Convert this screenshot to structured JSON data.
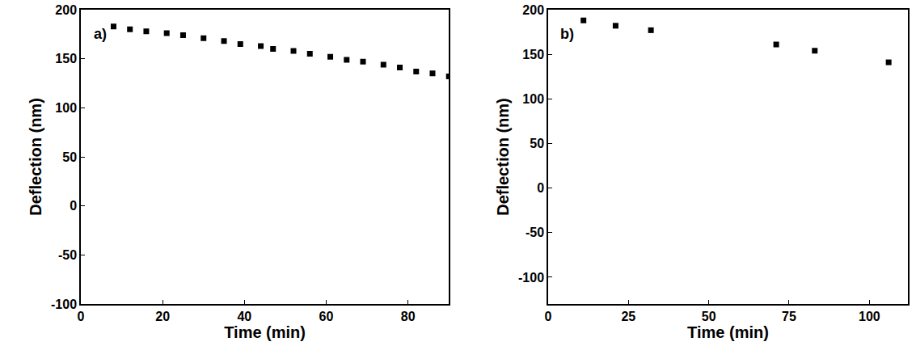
{
  "chart_data": [
    {
      "type": "scatter",
      "panel_label": "a)",
      "x_label": "Time (min)",
      "y_label": "Deflection (nm)",
      "x": [
        8,
        12,
        16,
        21,
        25,
        30,
        35,
        39,
        44,
        47,
        52,
        56,
        61,
        65,
        69,
        74,
        78,
        82,
        86,
        90
      ],
      "values": [
        183,
        180,
        178,
        176,
        174,
        171,
        168,
        165,
        163,
        160,
        158,
        155,
        152,
        149,
        147,
        144,
        141,
        137,
        135,
        132
      ],
      "color": "#000000",
      "marker": "square",
      "xlim": [
        0,
        90
      ],
      "xticks": [
        0,
        20,
        40,
        60,
        80
      ],
      "ylim": [
        -100,
        200
      ],
      "yticks": [
        -100,
        -50,
        0,
        50,
        100,
        150,
        200
      ],
      "grid": false
    },
    {
      "type": "scatter",
      "panel_label": "b)",
      "x_label": "Time (min)",
      "y_label": "Deflection (nm)",
      "x": [
        11,
        21,
        32,
        71,
        83,
        106
      ],
      "values": [
        188,
        182,
        177,
        161,
        154,
        141
      ],
      "color": "#000000",
      "marker": "square",
      "xlim": [
        0,
        112
      ],
      "xticks": [
        0,
        25,
        50,
        75,
        100
      ],
      "ylim": [
        -130,
        200
      ],
      "yticks": [
        -100,
        -50,
        0,
        50,
        100,
        150,
        200
      ],
      "grid": false
    }
  ]
}
